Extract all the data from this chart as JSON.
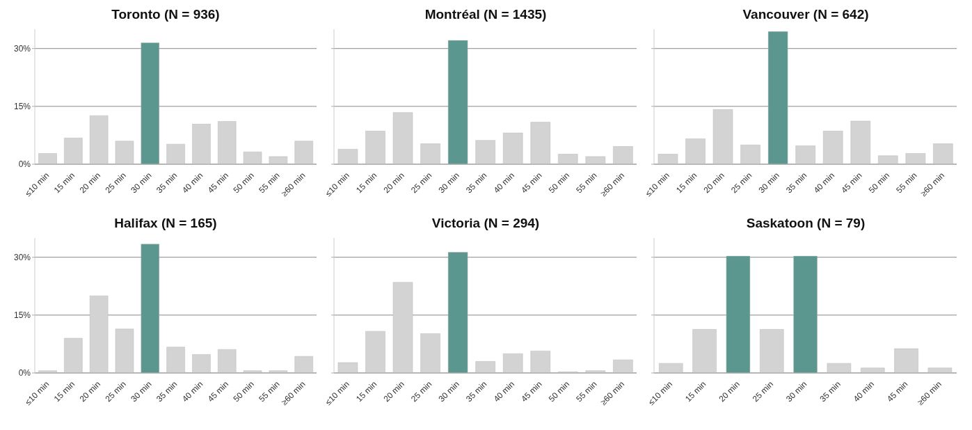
{
  "chart_data": [
    {
      "type": "bar",
      "title": "Toronto (N = 936)",
      "categories": [
        "≤10 min",
        "15 min",
        "20 min",
        "25 min",
        "30 min",
        "35 min",
        "40 min",
        "45 min",
        "50 min",
        "55 min",
        "≥60 min"
      ],
      "values": [
        2.8,
        6.8,
        12.6,
        6.0,
        31.5,
        5.2,
        10.4,
        11.1,
        3.2,
        2.0,
        6.0
      ],
      "colors": [
        "#d3d3d3",
        "#d3d3d3",
        "#d3d3d3",
        "#d3d3d3",
        "#5b978f",
        "#d3d3d3",
        "#d3d3d3",
        "#d3d3d3",
        "#d3d3d3",
        "#d3d3d3",
        "#d3d3d3"
      ],
      "ylim": [
        0,
        35
      ],
      "yticks": [
        {
          "value": 0,
          "label": "0%"
        },
        {
          "value": 15,
          "label": "15%"
        },
        {
          "value": 30,
          "label": "30%"
        }
      ],
      "grid": "y"
    },
    {
      "type": "bar",
      "title": "Montréal (N = 1435)",
      "categories": [
        "≤10 min",
        "15 min",
        "20 min",
        "25 min",
        "30 min",
        "35 min",
        "40 min",
        "45 min",
        "50 min",
        "55 min",
        "≥60 min"
      ],
      "values": [
        3.9,
        8.6,
        13.4,
        5.3,
        32.1,
        6.2,
        8.1,
        10.9,
        2.6,
        2.0,
        4.6
      ],
      "colors": [
        "#d3d3d3",
        "#d3d3d3",
        "#d3d3d3",
        "#d3d3d3",
        "#5b978f",
        "#d3d3d3",
        "#d3d3d3",
        "#d3d3d3",
        "#d3d3d3",
        "#d3d3d3",
        "#d3d3d3"
      ],
      "ylim": [
        0,
        35
      ],
      "yticks": [
        {
          "value": 0,
          "label": null
        },
        {
          "value": 15,
          "label": null
        },
        {
          "value": 30,
          "label": null
        }
      ],
      "grid": "y",
      "tick_labels": "x"
    },
    {
      "type": "bar",
      "title": "Vancouver (N = 642)",
      "categories": [
        "≤10 min",
        "15 min",
        "20 min",
        "25 min",
        "30 min",
        "35 min",
        "40 min",
        "45 min",
        "50 min",
        "55 min",
        "≥60 min"
      ],
      "values": [
        2.6,
        6.6,
        14.2,
        5.0,
        34.4,
        4.8,
        8.6,
        11.2,
        2.2,
        2.8,
        5.3
      ],
      "colors": [
        "#d3d3d3",
        "#d3d3d3",
        "#d3d3d3",
        "#d3d3d3",
        "#5b978f",
        "#d3d3d3",
        "#d3d3d3",
        "#d3d3d3",
        "#d3d3d3",
        "#d3d3d3",
        "#d3d3d3"
      ],
      "ylim": [
        0,
        35
      ],
      "yticks": [
        {
          "value": 0,
          "label": null
        },
        {
          "value": 15,
          "label": null
        },
        {
          "value": 30,
          "label": null
        }
      ],
      "grid": "y",
      "tick_labels": "x"
    },
    {
      "type": "bar",
      "title": "Halifax (N = 165)",
      "categories": [
        "≤10 min",
        "15 min",
        "20 min",
        "25 min",
        "30 min",
        "35 min",
        "40 min",
        "45 min",
        "50 min",
        "55 min",
        "≥60 min"
      ],
      "values": [
        0.6,
        9.0,
        20.0,
        11.4,
        33.4,
        6.7,
        4.8,
        6.1,
        0.6,
        0.6,
        4.3
      ],
      "colors": [
        "#d3d3d3",
        "#d3d3d3",
        "#d3d3d3",
        "#d3d3d3",
        "#5b978f",
        "#d3d3d3",
        "#d3d3d3",
        "#d3d3d3",
        "#d3d3d3",
        "#d3d3d3",
        "#d3d3d3"
      ],
      "ylim": [
        0,
        35
      ],
      "yticks": [
        {
          "value": 0,
          "label": "0%"
        },
        {
          "value": 15,
          "label": "15%"
        },
        {
          "value": 30,
          "label": "30%"
        }
      ],
      "grid": "y"
    },
    {
      "type": "bar",
      "title": "Victoria (N = 294)",
      "categories": [
        "≤10 min",
        "15 min",
        "20 min",
        "25 min",
        "30 min",
        "35 min",
        "40 min",
        "45 min",
        "50 min",
        "55 min",
        "≥60 min"
      ],
      "values": [
        2.7,
        10.8,
        23.5,
        10.2,
        31.3,
        3.0,
        5.0,
        5.7,
        0.3,
        0.6,
        3.4
      ],
      "colors": [
        "#d3d3d3",
        "#d3d3d3",
        "#d3d3d3",
        "#d3d3d3",
        "#5b978f",
        "#d3d3d3",
        "#d3d3d3",
        "#d3d3d3",
        "#d3d3d3",
        "#d3d3d3",
        "#d3d3d3"
      ],
      "ylim": [
        0,
        35
      ],
      "yticks": [
        {
          "value": 0,
          "label": null
        },
        {
          "value": 15,
          "label": null
        },
        {
          "value": 30,
          "label": null
        }
      ],
      "grid": "y",
      "tick_labels": "x"
    },
    {
      "type": "bar",
      "title": "Saskatoon (N = 79)",
      "categories": [
        "≤10 min",
        "15 min",
        "20 min",
        "25 min",
        "30 min",
        "35 min",
        "40 min",
        "45 min",
        "≥60 min"
      ],
      "values": [
        2.5,
        11.3,
        30.3,
        11.3,
        30.3,
        2.5,
        1.3,
        6.3,
        1.3
      ],
      "colors": [
        "#d3d3d3",
        "#d3d3d3",
        "#5b978f",
        "#d3d3d3",
        "#5b978f",
        "#d3d3d3",
        "#d3d3d3",
        "#d3d3d3",
        "#d3d3d3"
      ],
      "ylim": [
        0,
        35
      ],
      "yticks": [
        {
          "value": 0,
          "label": null
        },
        {
          "value": 15,
          "label": null
        },
        {
          "value": 30,
          "label": null
        }
      ],
      "grid": "y",
      "tick_labels": "x"
    }
  ]
}
